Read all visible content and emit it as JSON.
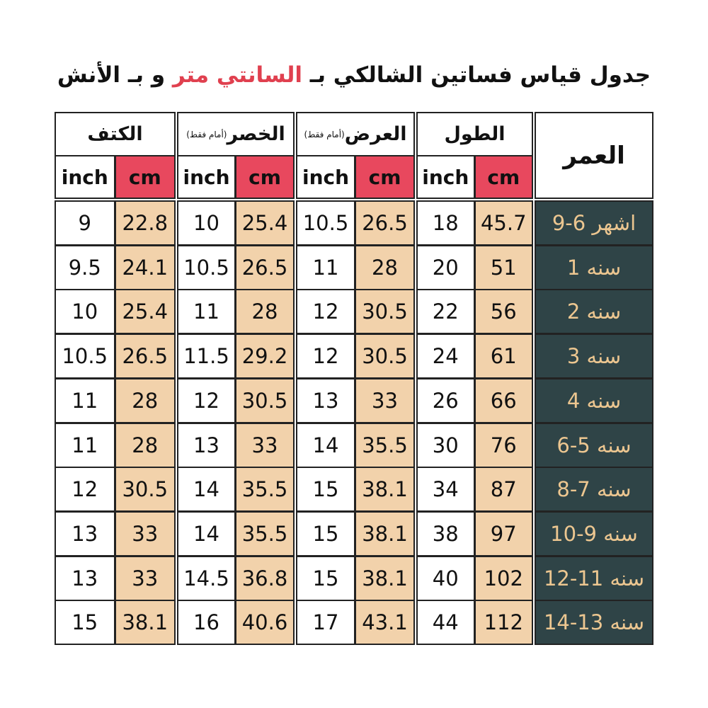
{
  "title": {
    "parts": [
      "جدول قياس فساتين الشالكي بـ",
      "السانتي متر",
      "و بـ الأنش"
    ]
  },
  "table": {
    "age_header": "العمر",
    "units": {
      "cm": "cm",
      "inch": "inch"
    },
    "groups": [
      {
        "name": "الطول"
      },
      {
        "name": "العرض",
        "note": "(أمام فقط)"
      },
      {
        "name": "الخصر",
        "note": "(أمام فقط)"
      },
      {
        "name": "الكتف"
      }
    ],
    "rows": [
      {
        "age": "9-6 اشهر",
        "values": [
          [
            45.7,
            18
          ],
          [
            26.5,
            10.5
          ],
          [
            25.4,
            10
          ],
          [
            22.8,
            9
          ]
        ]
      },
      {
        "age": "1 سنه",
        "values": [
          [
            51,
            20
          ],
          [
            28,
            11
          ],
          [
            26.5,
            10.5
          ],
          [
            24.1,
            9.5
          ]
        ]
      },
      {
        "age": "2 سنه",
        "values": [
          [
            56,
            22
          ],
          [
            30.5,
            12
          ],
          [
            28,
            11
          ],
          [
            25.4,
            10
          ]
        ]
      },
      {
        "age": "3 سنه",
        "values": [
          [
            61,
            24
          ],
          [
            30.5,
            12
          ],
          [
            29.2,
            11.5
          ],
          [
            26.5,
            10.5
          ]
        ]
      },
      {
        "age": "4 سنه",
        "values": [
          [
            66,
            26
          ],
          [
            33,
            13
          ],
          [
            30.5,
            12
          ],
          [
            28,
            11
          ]
        ]
      },
      {
        "age": "6-5 سنه",
        "values": [
          [
            76,
            30
          ],
          [
            35.5,
            14
          ],
          [
            33,
            13
          ],
          [
            28,
            11
          ]
        ]
      },
      {
        "age": "8-7 سنه",
        "values": [
          [
            87,
            34
          ],
          [
            38.1,
            15
          ],
          [
            35.5,
            14
          ],
          [
            30.5,
            12
          ]
        ]
      },
      {
        "age": "10-9 سنه",
        "values": [
          [
            97,
            38
          ],
          [
            38.1,
            15
          ],
          [
            35.5,
            14
          ],
          [
            33,
            13
          ]
        ]
      },
      {
        "age": "12-11 سنه",
        "values": [
          [
            102,
            40
          ],
          [
            38.1,
            15
          ],
          [
            36.8,
            14.5
          ],
          [
            33,
            13
          ]
        ]
      },
      {
        "age": "14-13 سنه",
        "values": [
          [
            112,
            44
          ],
          [
            43.1,
            17
          ],
          [
            40.6,
            16
          ],
          [
            38.1,
            15
          ]
        ]
      }
    ]
  }
}
